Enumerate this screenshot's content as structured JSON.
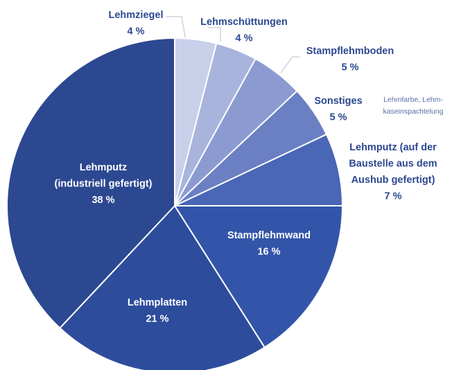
{
  "chart_data": {
    "type": "pie",
    "categories": [
      "Lehmziegel",
      "Lehmschüttungen",
      "Stampflehmboden",
      "Sonstiges",
      "Lehmputz (auf der\nBaustelle aus dem\nAushub gefertigt)",
      "Stampflehmwand",
      "Lehmplatten",
      "Lehmputz\n(industriell gefertigt)"
    ],
    "values": [
      4,
      4,
      5,
      5,
      7,
      16,
      21,
      38
    ],
    "value_labels": [
      "4 %",
      "4 %",
      "5 %",
      "5 %",
      "7 %",
      "16 %",
      "21 %",
      "38 %"
    ],
    "colors": [
      "#c8cfe9",
      "#a8b4dc",
      "#8b9bd1",
      "#6b80c3",
      "#4a66b6",
      "#3355a9",
      "#2d4d9c",
      "#2c4891"
    ],
    "annotations": [
      {
        "text": "Lehmfarbe, Lehm-\nkaseinspachtelung",
        "target": 3
      }
    ]
  }
}
